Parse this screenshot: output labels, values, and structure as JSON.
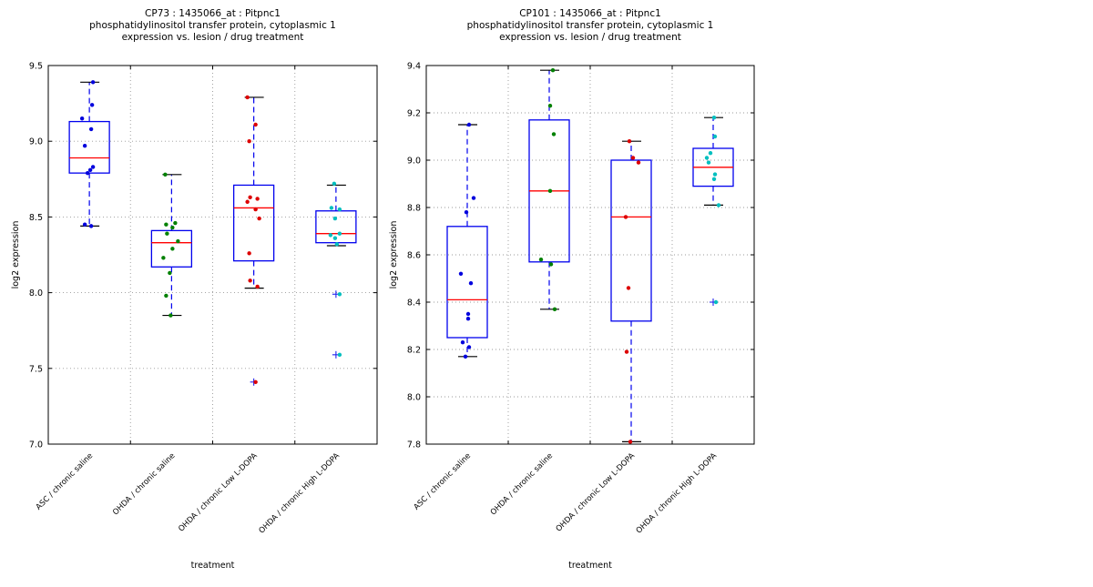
{
  "style": {
    "background": "#ffffff",
    "box_edge_color": "#0000ee",
    "median_color": "#ff0000",
    "whisker_color": "#0000ee",
    "cap_color": "#000000",
    "flier_marker_color": "#2222ee",
    "grid_color": "#999999",
    "spine_color": "#000000",
    "text_color": "#000000"
  },
  "chart_data": [
    {
      "type": "boxplot-scatter",
      "title_lines": [
        "CP73 : 1435066_at : Pitpnc1",
        "phosphatidylinositol transfer protein, cytoplasmic 1",
        "expression vs. lesion / drug treatment"
      ],
      "xlabel": "treatment",
      "ylabel": "log2 expression",
      "ylim": [
        7.0,
        9.5
      ],
      "yticks": [
        7.0,
        7.5,
        8.0,
        8.5,
        9.0,
        9.5
      ],
      "grid": "both-dotted",
      "categories": [
        {
          "label": "ASC / chronic saline",
          "color": "#0000dd",
          "box": {
            "whislo": 8.44,
            "q1": 8.79,
            "med": 8.89,
            "q3": 9.13,
            "whishi": 9.39
          },
          "outliers": [],
          "points": [
            [
              9.39,
              4
            ],
            [
              9.24,
              3
            ],
            [
              9.15,
              -8
            ],
            [
              9.08,
              2
            ],
            [
              8.97,
              -5
            ],
            [
              8.83,
              4
            ],
            [
              8.81,
              1
            ],
            [
              8.79,
              -2
            ],
            [
              8.45,
              -5
            ],
            [
              8.44,
              2
            ]
          ]
        },
        {
          "label": "OHDA / chronic saline",
          "color": "#008000",
          "box": {
            "whislo": 7.85,
            "q1": 8.17,
            "med": 8.33,
            "q3": 8.41,
            "whishi": 8.78
          },
          "outliers": [],
          "points": [
            [
              8.78,
              -7
            ],
            [
              8.46,
              4
            ],
            [
              8.45,
              -6
            ],
            [
              8.43,
              1
            ],
            [
              8.39,
              -5
            ],
            [
              8.34,
              7
            ],
            [
              8.29,
              1
            ],
            [
              8.23,
              -9
            ],
            [
              8.13,
              -2
            ],
            [
              7.98,
              -6
            ],
            [
              7.85,
              -1
            ]
          ]
        },
        {
          "label": "OHDA / chronic Low L-DOPA",
          "color": "#dd0000",
          "box": {
            "whislo": 8.03,
            "q1": 8.21,
            "med": 8.56,
            "q3": 8.71,
            "whishi": 9.29
          },
          "outliers": [
            7.41
          ],
          "points": [
            [
              9.29,
              -7
            ],
            [
              9.11,
              2
            ],
            [
              9.0,
              -5
            ],
            [
              8.63,
              -4
            ],
            [
              8.62,
              4
            ],
            [
              8.6,
              -7
            ],
            [
              8.55,
              2
            ],
            [
              8.49,
              6
            ],
            [
              8.26,
              -5
            ],
            [
              8.08,
              -4
            ],
            [
              8.04,
              4
            ],
            [
              7.41,
              2
            ]
          ]
        },
        {
          "label": "OHDA / chronic High L-DOPA",
          "color": "#00bfbf",
          "box": {
            "whislo": 8.31,
            "q1": 8.33,
            "med": 8.39,
            "q3": 8.54,
            "whishi": 8.71
          },
          "outliers": [
            7.99,
            7.59
          ],
          "points": [
            [
              8.72,
              -2
            ],
            [
              8.56,
              -5
            ],
            [
              8.55,
              4
            ],
            [
              8.49,
              -1
            ],
            [
              8.39,
              4
            ],
            [
              8.38,
              -6
            ],
            [
              8.36,
              -1
            ],
            [
              8.32,
              1
            ],
            [
              7.99,
              4
            ],
            [
              7.59,
              4
            ]
          ]
        }
      ]
    },
    {
      "type": "boxplot-scatter",
      "title_lines": [
        "CP101 : 1435066_at : Pitpnc1",
        "phosphatidylinositol transfer protein, cytoplasmic 1",
        "expression vs. lesion / drug treatment"
      ],
      "xlabel": "treatment",
      "ylabel": "log2 expression",
      "ylim": [
        7.8,
        9.4
      ],
      "yticks": [
        7.8,
        8.0,
        8.2,
        8.4,
        8.6,
        8.8,
        9.0,
        9.2,
        9.4
      ],
      "grid": "both-dotted",
      "categories": [
        {
          "label": "ASC / chronic saline",
          "color": "#0000dd",
          "box": {
            "whislo": 8.17,
            "q1": 8.25,
            "med": 8.41,
            "q3": 8.72,
            "whishi": 9.15
          },
          "outliers": [],
          "points": [
            [
              9.15,
              2
            ],
            [
              8.84,
              7
            ],
            [
              8.78,
              -1
            ],
            [
              8.52,
              -7
            ],
            [
              8.48,
              4
            ],
            [
              8.35,
              1
            ],
            [
              8.33,
              1
            ],
            [
              8.23,
              -5
            ],
            [
              8.21,
              2
            ],
            [
              8.17,
              -2
            ]
          ]
        },
        {
          "label": "OHDA / chronic saline",
          "color": "#008000",
          "box": {
            "whislo": 8.37,
            "q1": 8.57,
            "med": 8.87,
            "q3": 9.17,
            "whishi": 9.38
          },
          "outliers": [],
          "points": [
            [
              9.38,
              4
            ],
            [
              9.23,
              1
            ],
            [
              9.11,
              5
            ],
            [
              8.87,
              1
            ],
            [
              8.58,
              -9
            ],
            [
              8.56,
              2
            ],
            [
              8.37,
              6
            ]
          ]
        },
        {
          "label": "OHDA / chronic Low L-DOPA",
          "color": "#dd0000",
          "box": {
            "whislo": 7.81,
            "q1": 8.32,
            "med": 8.76,
            "q3": 9.0,
            "whishi": 9.08
          },
          "outliers": [],
          "points": [
            [
              9.08,
              -2
            ],
            [
              9.01,
              2
            ],
            [
              8.99,
              8
            ],
            [
              8.76,
              -6
            ],
            [
              8.46,
              -3
            ],
            [
              8.19,
              -5
            ],
            [
              7.81,
              -1
            ]
          ]
        },
        {
          "label": "OHDA / chronic High L-DOPA",
          "color": "#00bfbf",
          "box": {
            "whislo": 8.81,
            "q1": 8.89,
            "med": 8.97,
            "q3": 9.05,
            "whishi": 9.18
          },
          "outliers": [
            8.4
          ],
          "points": [
            [
              9.18,
              1
            ],
            [
              9.1,
              2
            ],
            [
              9.03,
              -3
            ],
            [
              9.01,
              -7
            ],
            [
              8.99,
              -5
            ],
            [
              8.94,
              2
            ],
            [
              8.92,
              1
            ],
            [
              8.81,
              6
            ],
            [
              8.4,
              3
            ]
          ]
        }
      ]
    }
  ]
}
